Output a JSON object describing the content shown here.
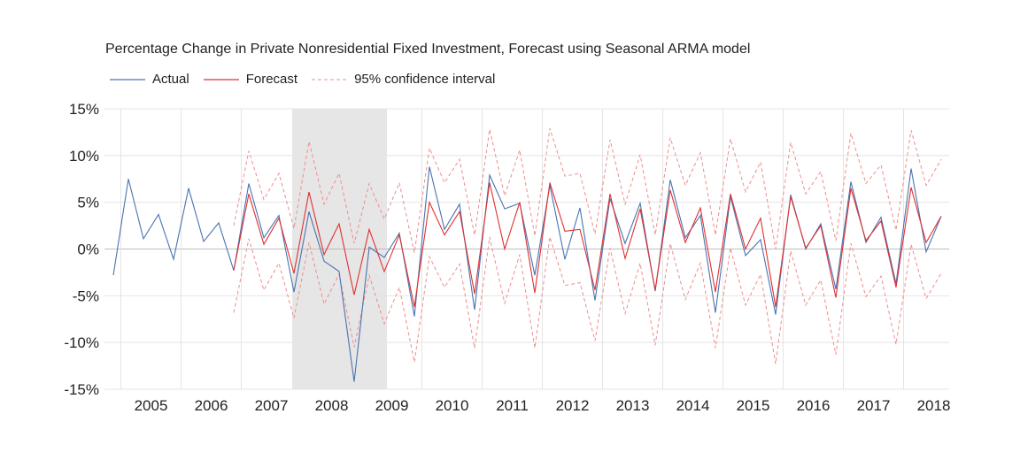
{
  "chart_data": {
    "type": "line",
    "title": "Percentage Change in Private Nonresidential Fixed Investment, Forecast using Seasonal ARMA model",
    "xlabel": "",
    "ylabel": "",
    "ylim": [
      -15,
      15
    ],
    "y_ticks": [
      15,
      10,
      5,
      0,
      -5,
      -10,
      -15
    ],
    "y_tick_labels": [
      "15%",
      "10%",
      "5%",
      "0%",
      "-5%",
      "-10%",
      "-15%"
    ],
    "x_ticks": [
      "2005",
      "2006",
      "2007",
      "2008",
      "2009",
      "2010",
      "2011",
      "2012",
      "2013",
      "2014",
      "2015",
      "2016",
      "2017",
      "2018"
    ],
    "x_unit": "quarter",
    "x_start": "2004Q4",
    "recession_shading": {
      "start": "2007Q4",
      "end": "2009Q2"
    },
    "grid": {
      "vertical": true,
      "horizontal": true
    },
    "legend_position": "top-left",
    "series": [
      {
        "name": "Actual",
        "color": "#4a73b0",
        "start": "2004Q4",
        "values": [
          -2.8,
          7.5,
          1.1,
          3.7,
          -1.1,
          6.5,
          0.8,
          2.8,
          -2.3,
          7.0,
          1.2,
          3.6,
          -4.6,
          4.0,
          -1.3,
          -2.4,
          -14.2,
          0.2,
          -0.9,
          1.7,
          -7.2,
          8.8,
          2.1,
          4.8,
          -6.5,
          7.9,
          4.3,
          4.9,
          -2.8,
          6.8,
          -1.1,
          4.4,
          -5.5,
          5.4,
          0.6,
          4.9,
          -4.5,
          7.4,
          1.2,
          3.6,
          -6.8,
          5.6,
          -0.7,
          1.0,
          -7.0,
          5.8,
          0.0,
          2.7,
          -4.3,
          7.2,
          0.7,
          3.4,
          -3.7,
          8.6,
          -0.3,
          3.5
        ]
      },
      {
        "name": "Forecast",
        "color": "#e03030",
        "start": "2006Q4",
        "values": [
          -2.3,
          5.9,
          0.5,
          3.3,
          -2.6,
          6.1,
          -0.6,
          2.7,
          -4.9,
          2.1,
          -2.4,
          1.5,
          -6.2,
          5.0,
          1.5,
          4.0,
          -4.8,
          7.1,
          0.0,
          5.0,
          -4.7,
          7.1,
          1.9,
          2.1,
          -4.4,
          5.9,
          -1.0,
          4.3,
          -4.4,
          6.3,
          0.7,
          4.4,
          -4.6,
          5.9,
          0.0,
          3.3,
          -6.2,
          5.6,
          0.1,
          2.5,
          -5.2,
          6.5,
          0.9,
          3.0,
          -4.1,
          6.6,
          0.7,
          3.5
        ]
      },
      {
        "name": "95% confidence interval",
        "color": "#f08c8c",
        "start": "2006Q4",
        "upper": [
          2.5,
          10.5,
          5.3,
          8.1,
          2.2,
          11.5,
          4.8,
          8.1,
          0.6,
          7.0,
          3.2,
          7.1,
          -0.4,
          10.8,
          7.1,
          9.6,
          1.5,
          12.8,
          5.7,
          10.6,
          1.4,
          12.9,
          7.8,
          8.1,
          1.6,
          11.7,
          4.8,
          10.1,
          1.5,
          11.9,
          6.8,
          10.3,
          1.5,
          11.8,
          6.1,
          9.3,
          0.0,
          11.4,
          5.9,
          8.3,
          0.9,
          12.4,
          7.0,
          9.0,
          2.0,
          12.7,
          6.8,
          9.6
        ],
        "lower": [
          -6.8,
          1.1,
          -4.4,
          -1.5,
          -7.4,
          0.7,
          -5.9,
          -2.7,
          -10.5,
          -2.8,
          -8.0,
          -4.1,
          -12.1,
          -0.8,
          -4.1,
          -1.6,
          -10.6,
          1.3,
          -5.8,
          -0.6,
          -10.6,
          1.3,
          -3.9,
          -3.6,
          -9.8,
          0.1,
          -6.9,
          -1.5,
          -10.3,
          0.6,
          -5.4,
          -1.5,
          -10.6,
          0.1,
          -6.0,
          -2.7,
          -12.3,
          -0.2,
          -6.0,
          -3.3,
          -11.3,
          0.6,
          -5.1,
          -2.9,
          -10.2,
          0.5,
          -5.3,
          -2.6
        ]
      }
    ]
  }
}
